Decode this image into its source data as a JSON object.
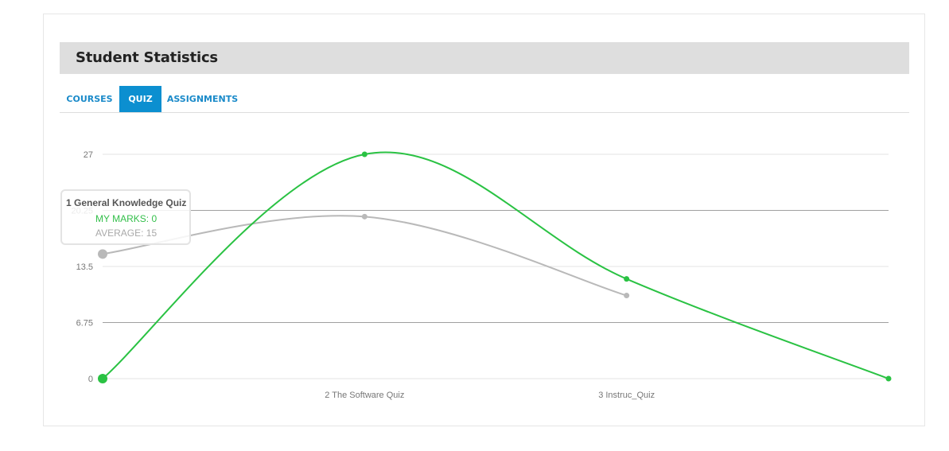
{
  "panel": {
    "title": "Student Statistics"
  },
  "tabs": [
    {
      "label": "COURSES",
      "active": false
    },
    {
      "label": "QUIZ",
      "active": true
    },
    {
      "label": "ASSIGNMENTS",
      "active": false
    }
  ],
  "tooltip": {
    "title": "1 General Knowledge Quiz",
    "my_marks": "MY MARKS: 0",
    "average": "AVERAGE: 15"
  },
  "colors": {
    "my_marks": "#2ac243",
    "average": "#b9b9b9",
    "tab_active": "#0c8fd0",
    "tab_text": "#1a8ac9"
  },
  "chart_data": {
    "type": "line",
    "categories": [
      "1 General Knowledge Quiz",
      "2 The Software Quiz",
      "3 Instruc_Quiz",
      ""
    ],
    "tick_labels": [
      "",
      "2 The Software Quiz",
      "3 Instruc_Quiz",
      ""
    ],
    "yticks": [
      "0",
      "6.75",
      "13.5",
      "20.25",
      "27"
    ],
    "ylim": [
      0,
      27
    ],
    "series": [
      {
        "name": "MY MARKS",
        "values": [
          0,
          27,
          12,
          0
        ],
        "color": "#2ac243"
      },
      {
        "name": "AVERAGE",
        "values": [
          15,
          19.5,
          10,
          null
        ],
        "color": "#b9b9b9"
      }
    ],
    "grid": true
  }
}
